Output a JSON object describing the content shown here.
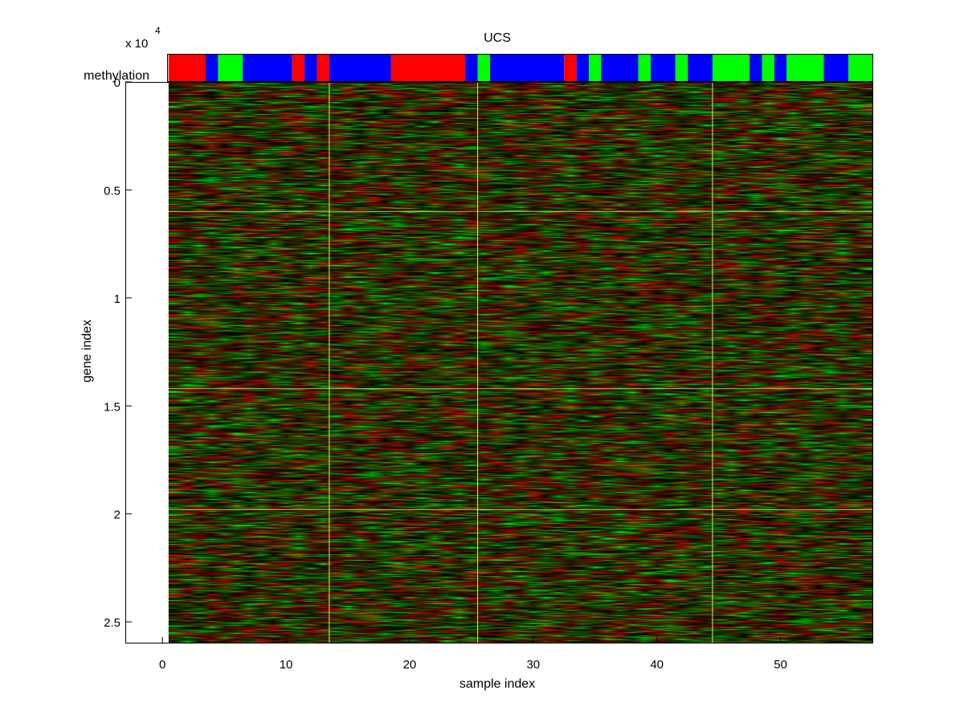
{
  "chart_data": {
    "type": "heatmap",
    "title": "UCS",
    "xlabel": "sample index",
    "ylabel": "gene index",
    "y_exponent_label": "x 10",
    "y_exponent_power": "4",
    "annotation_label": "methylation",
    "x_range": [
      -3,
      57.5
    ],
    "y_range": [
      0,
      26000
    ],
    "y_reversed": true,
    "x_ticks": [
      0,
      10,
      20,
      30,
      40,
      50
    ],
    "x_tick_labels": [
      "0",
      "10",
      "20",
      "30",
      "40",
      "50"
    ],
    "y_ticks": [
      0,
      5000,
      10000,
      15000,
      20000,
      25000
    ],
    "y_tick_labels": [
      "0",
      "0.5",
      "1",
      "1.5",
      "2",
      "2.5"
    ],
    "n_samples": 57,
    "n_genes": 26000,
    "heatmap_x_start": 0.5,
    "heatmap_x_end": 57.5,
    "sample_group_boundaries": [
      13.5,
      25.5,
      44.5
    ],
    "gene_group_boundaries": [
      6000,
      14200,
      19800
    ],
    "color_low": "#00ff00",
    "color_mid": "#000000",
    "color_high": "#ff0000",
    "boundary_color": "#e8e870",
    "methylation_segments": [
      {
        "from": 0.5,
        "to": 3.5,
        "color": "#ff0000"
      },
      {
        "from": 3.5,
        "to": 4.5,
        "color": "#0000ff"
      },
      {
        "from": 4.5,
        "to": 6.5,
        "color": "#00ff00"
      },
      {
        "from": 6.5,
        "to": 10.5,
        "color": "#0000ff"
      },
      {
        "from": 10.5,
        "to": 11.5,
        "color": "#ff0000"
      },
      {
        "from": 11.5,
        "to": 12.5,
        "color": "#0000ff"
      },
      {
        "from": 12.5,
        "to": 13.5,
        "color": "#ff0000"
      },
      {
        "from": 13.5,
        "to": 18.5,
        "color": "#0000ff"
      },
      {
        "from": 18.5,
        "to": 24.5,
        "color": "#ff0000"
      },
      {
        "from": 24.5,
        "to": 25.5,
        "color": "#0000ff"
      },
      {
        "from": 25.5,
        "to": 26.5,
        "color": "#00ff00"
      },
      {
        "from": 26.5,
        "to": 32.5,
        "color": "#0000ff"
      },
      {
        "from": 32.5,
        "to": 33.5,
        "color": "#ff0000"
      },
      {
        "from": 33.5,
        "to": 34.5,
        "color": "#0000ff"
      },
      {
        "from": 34.5,
        "to": 35.5,
        "color": "#00ff00"
      },
      {
        "from": 35.5,
        "to": 38.5,
        "color": "#0000ff"
      },
      {
        "from": 38.5,
        "to": 39.5,
        "color": "#00ff00"
      },
      {
        "from": 39.5,
        "to": 41.5,
        "color": "#0000ff"
      },
      {
        "from": 41.5,
        "to": 42.5,
        "color": "#00ff00"
      },
      {
        "from": 42.5,
        "to": 44.5,
        "color": "#0000ff"
      },
      {
        "from": 44.5,
        "to": 47.5,
        "color": "#00ff00"
      },
      {
        "from": 47.5,
        "to": 48.5,
        "color": "#0000ff"
      },
      {
        "from": 48.5,
        "to": 49.5,
        "color": "#00ff00"
      },
      {
        "from": 49.5,
        "to": 50.5,
        "color": "#0000ff"
      },
      {
        "from": 50.5,
        "to": 53.5,
        "color": "#00ff00"
      },
      {
        "from": 53.5,
        "to": 55.5,
        "color": "#0000ff"
      },
      {
        "from": 55.5,
        "to": 57.5,
        "color": "#00ff00"
      }
    ]
  }
}
